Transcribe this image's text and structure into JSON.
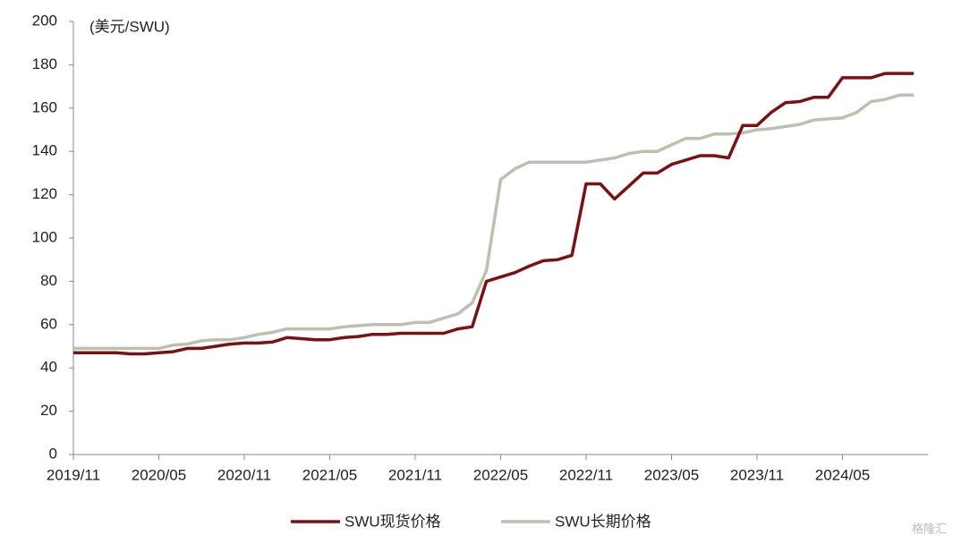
{
  "chart_data": {
    "type": "line",
    "y_label": "(美元/SWU)",
    "watermark": "格隆汇",
    "categories": [
      "2019/11",
      null,
      null,
      null,
      null,
      null,
      "2020/05",
      null,
      null,
      null,
      null,
      null,
      "2020/11",
      null,
      null,
      null,
      null,
      null,
      "2021/05",
      null,
      null,
      null,
      null,
      null,
      "2021/11",
      null,
      null,
      null,
      null,
      null,
      "2022/05",
      null,
      null,
      null,
      null,
      null,
      "2022/11",
      null,
      null,
      null,
      null,
      null,
      "2023/05",
      null,
      null,
      null,
      null,
      null,
      "2023/11",
      null,
      null,
      null,
      null,
      null,
      "2024/05",
      null,
      null,
      null,
      null,
      null
    ],
    "series": [
      {
        "name": "SWU现货价格",
        "color": "#7b1113",
        "values": [
          47,
          47,
          47,
          47,
          46.5,
          46.5,
          47,
          47.5,
          49,
          49,
          50,
          51,
          51.5,
          51.5,
          52,
          54,
          53.5,
          53,
          53,
          54,
          54.5,
          55.5,
          55.5,
          56,
          56,
          56,
          56,
          58,
          59,
          80,
          82,
          84,
          87,
          89.5,
          90,
          92,
          125,
          125,
          118,
          124,
          130,
          130,
          134,
          136,
          138,
          138,
          137,
          152,
          152,
          158,
          162.5,
          163,
          165,
          165,
          174,
          174,
          174,
          176,
          176,
          176
        ]
      },
      {
        "name": "SWU长期价格",
        "color": "#bfbfb0",
        "values": [
          49,
          49,
          49,
          49,
          49,
          49,
          49,
          50.5,
          51,
          52.5,
          53,
          53,
          54,
          55.5,
          56.5,
          58,
          58,
          58,
          58,
          59,
          59.5,
          60,
          60,
          60,
          61,
          61,
          63,
          65,
          70,
          85,
          127,
          132,
          135,
          135,
          135,
          135,
          135,
          136,
          137,
          139,
          140,
          140,
          143,
          146,
          146,
          148,
          148,
          148.5,
          150,
          150.5,
          151.5,
          152.5,
          154.5,
          155,
          155.5,
          158,
          163,
          164,
          166,
          166
        ]
      }
    ],
    "ylim": [
      0,
      200
    ],
    "yticks": [
      0,
      20,
      40,
      60,
      80,
      100,
      120,
      140,
      160,
      180,
      200
    ]
  }
}
